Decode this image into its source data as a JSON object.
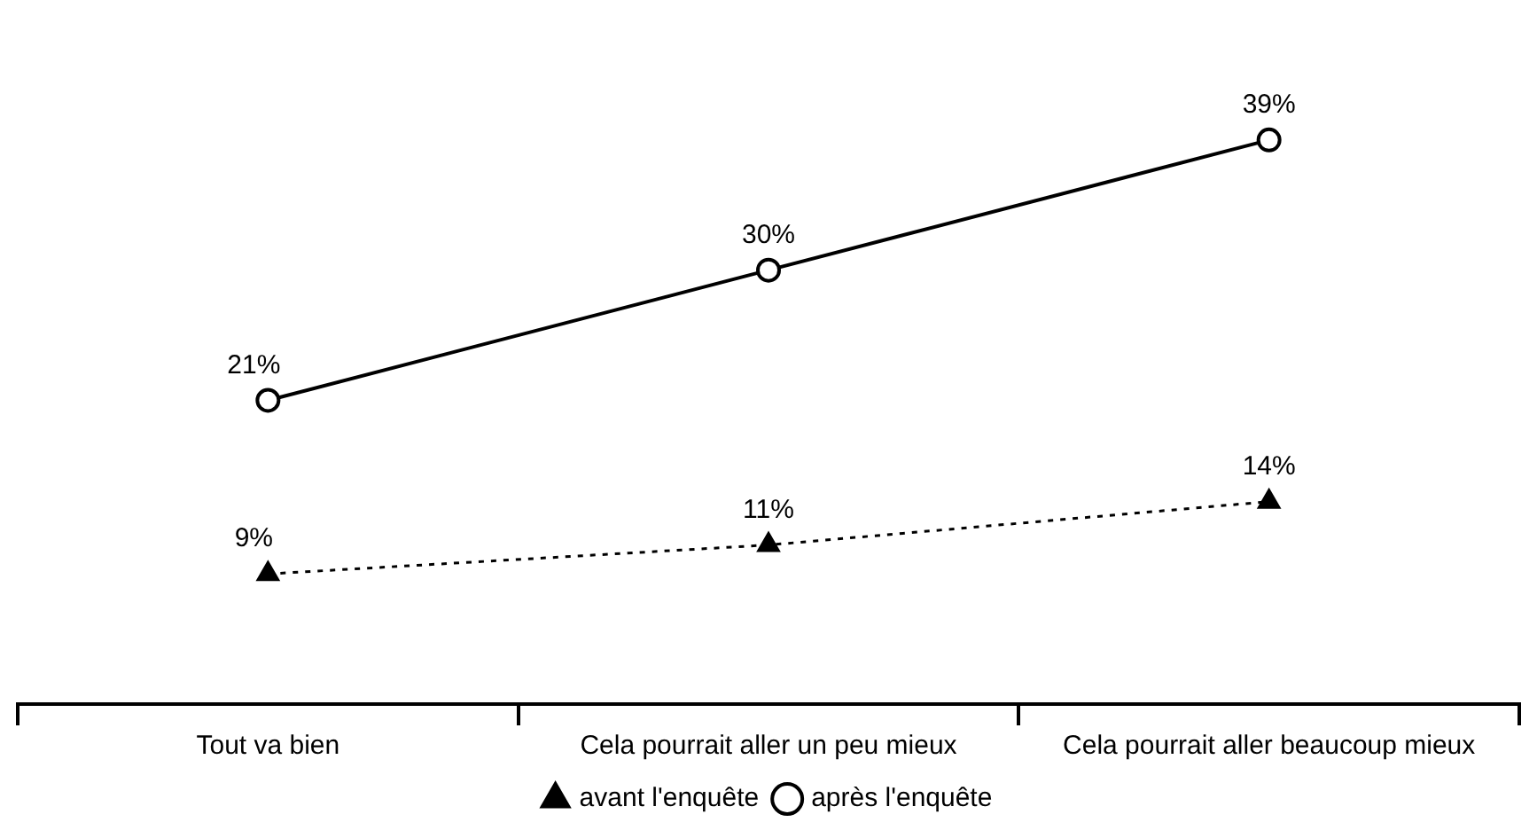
{
  "chart_data": {
    "type": "line",
    "categories": [
      "Tout va bien",
      "Cela pourrait aller un peu mieux",
      "Cela pourrait aller beaucoup mieux"
    ],
    "series": [
      {
        "name": "avant l'enquête",
        "color": "#000000",
        "values": [
          9,
          11,
          14
        ],
        "value_labels": [
          "9%",
          "11%",
          "14%"
        ],
        "marker": "triangle",
        "line_style": "dotted"
      },
      {
        "name": "après l'enquête",
        "color": "#000000",
        "values": [
          21,
          30,
          39
        ],
        "value_labels": [
          "21%",
          "30%",
          "39%"
        ],
        "marker": "circle",
        "line_style": "solid"
      }
    ],
    "legend": "bottom",
    "grid": false,
    "tick_labels": "x"
  }
}
